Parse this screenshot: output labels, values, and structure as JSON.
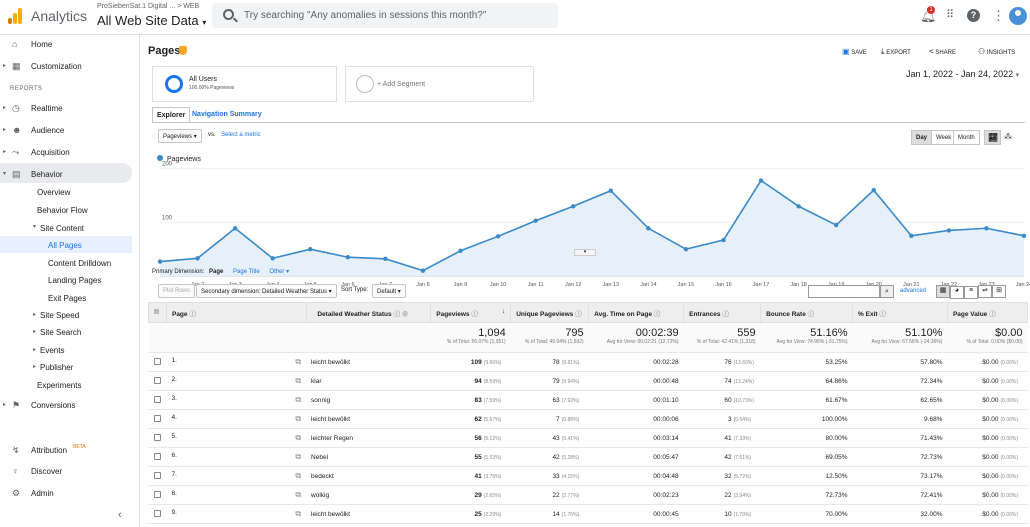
{
  "topbar": {
    "app_title": "Analytics",
    "account_path": "ProSiebenSat.1 Digital ... > WEB",
    "view_name": "All Web Site Data",
    "search_placeholder": "Try searching \"Any anomalies in sessions this month?\"",
    "notification_count": "1"
  },
  "sidebar": {
    "home": "Home",
    "customization": "Customization",
    "reports_label": "REPORTS",
    "realtime": "Realtime",
    "audience": "Audience",
    "acquisition": "Acquisition",
    "behavior": "Behavior",
    "overview": "Overview",
    "behavior_flow": "Behavior Flow",
    "site_content": "Site Content",
    "all_pages": "All Pages",
    "content_drilldown": "Content Drilldown",
    "landing_pages": "Landing Pages",
    "exit_pages": "Exit Pages",
    "site_speed": "Site Speed",
    "site_search": "Site Search",
    "events": "Events",
    "publisher": "Publisher",
    "experiments": "Experiments",
    "conversions": "Conversions",
    "attribution": "Attribution",
    "attribution_badge": "BETA",
    "discover": "Discover",
    "admin": "Admin"
  },
  "header": {
    "title": "Pages",
    "save": "SAVE",
    "export": "EXPORT",
    "share": "SHARE",
    "insights": "INSIGHTS",
    "date_range": "Jan 1, 2022 - Jan 24, 2022"
  },
  "segments": {
    "all_users": "All Users",
    "all_users_sub": "100.00% Pageviews",
    "add_segment": "+ Add Segment"
  },
  "tabs": {
    "explorer": "Explorer",
    "navigation_summary": "Navigation Summary"
  },
  "controls": {
    "metric": "Pageviews",
    "vs": "vs.",
    "select_metric": "Select a metric",
    "day": "Day",
    "week": "Week",
    "month": "Month"
  },
  "chart_data": {
    "type": "area",
    "legend": "Pageviews",
    "x": [
      "Jan 1",
      "Jan 2",
      "Jan 3",
      "Jan 4",
      "Jan 5",
      "Jan 6",
      "Jan 7",
      "Jan 8",
      "Jan 9",
      "Jan 10",
      "Jan 11",
      "Jan 12",
      "Jan 13",
      "Jan 14",
      "Jan 15",
      "Jan 16",
      "Jan 17",
      "Jan 18",
      "Jan 19",
      "Jan 20",
      "Jan 21",
      "Jan 22",
      "Jan 23",
      "Jan 24"
    ],
    "x_ticks": [
      "Jan 2",
      "Jan 3",
      "Jan 4",
      "Jan 5",
      "Jan 6",
      "Jan 7",
      "Jan 8",
      "Jan 9",
      "Jan 10",
      "Jan 11",
      "Jan 12",
      "Jan 13",
      "Jan 14",
      "Jan 15",
      "Jan 16",
      "Jan 17",
      "Jan 18",
      "Jan 19",
      "Jan 20",
      "Jan 21",
      "Jan 22",
      "Jan 23",
      "Jan 24"
    ],
    "values": [
      27,
      33,
      89,
      33,
      50,
      35,
      32,
      10,
      47,
      74,
      103,
      130,
      159,
      89,
      50,
      67,
      178,
      130,
      95,
      160,
      75,
      85,
      89,
      75
    ],
    "y_ticks": [
      100,
      200
    ],
    "ylim": [
      0,
      220
    ],
    "color": "#3a89c9"
  },
  "dimension_bar": {
    "primary_label": "Primary Dimension:",
    "page": "Page",
    "page_title": "Page Title",
    "other": "Other"
  },
  "table_controls": {
    "plot_rows": "Plot Rows",
    "secondary_dim": "Secondary dimension: Detailed Weather Status",
    "sort_type_label": "Sort Type:",
    "sort_type": "Default",
    "advanced": "advanced"
  },
  "table": {
    "headers": [
      "Page",
      "Detailed Weather Status",
      "Pageviews",
      "Unique Pageviews",
      "Avg. Time on Page",
      "Entrances",
      "Bounce Rate",
      "% Exit",
      "Page Value"
    ],
    "totals": [
      {
        "big": "1,094",
        "small": "% of Total: 56.07% (1,951)"
      },
      {
        "big": "795",
        "small": "% of Total: 49.94% (1,592)"
      },
      {
        "big": "00:02:39",
        "small": "Avg for View: 00:02:21 (12.72%)"
      },
      {
        "big": "559",
        "small": "% of Total: 42.41% (1,318)"
      },
      {
        "big": "51.16%",
        "small": "Avg for View: 74.96% (-31.75%)"
      },
      {
        "big": "51.10%",
        "small": "Avg for View: 67.56% (-24.36%)"
      },
      {
        "big": "$0.00",
        "small": "% of Total: 0.00% ($0.00)"
      }
    ],
    "rows": [
      {
        "n": "1.",
        "w": "leicht bewölkt",
        "pv": "109",
        "pvp": "(9.96%)",
        "upv": "78",
        "upvp": "(9.81%)",
        "t": "00:02:28",
        "e": "76",
        "ep": "(13.60%)",
        "b": "53.25%",
        "x": "57.80%",
        "v": "$0.00",
        "vp": "(0.00%)"
      },
      {
        "n": "2.",
        "w": "klar",
        "pv": "94",
        "pvp": "(8.59%)",
        "upv": "79",
        "upvp": "(9.94%)",
        "t": "00:00:48",
        "e": "74",
        "ep": "(13.24%)",
        "b": "64.86%",
        "x": "72.34%",
        "v": "$0.00",
        "vp": "(0.00%)"
      },
      {
        "n": "3.",
        "w": "sonnig",
        "pv": "83",
        "pvp": "(7.59%)",
        "upv": "63",
        "upvp": "(7.92%)",
        "t": "00:01:10",
        "e": "60",
        "ep": "(10.73%)",
        "b": "61.67%",
        "x": "62.65%",
        "v": "$0.00",
        "vp": "(0.00%)"
      },
      {
        "n": "4.",
        "w": "leicht bewölkt",
        "pv": "62",
        "pvp": "(5.67%)",
        "upv": "7",
        "upvp": "(0.88%)",
        "t": "00:00:06",
        "e": "3",
        "ep": "(0.54%)",
        "b": "100.00%",
        "x": "9.68%",
        "v": "$0.00",
        "vp": "(0.00%)"
      },
      {
        "n": "5.",
        "w": "leichter Regen",
        "pv": "56",
        "pvp": "(5.12%)",
        "upv": "43",
        "upvp": "(5.41%)",
        "t": "00:03:14",
        "e": "41",
        "ep": "(7.33%)",
        "b": "80.00%",
        "x": "71.43%",
        "v": "$0.00",
        "vp": "(0.00%)"
      },
      {
        "n": "6.",
        "w": "Nebel",
        "pv": "55",
        "pvp": "(5.03%)",
        "upv": "42",
        "upvp": "(5.28%)",
        "t": "00:05:47",
        "e": "42",
        "ep": "(7.51%)",
        "b": "69.05%",
        "x": "72.73%",
        "v": "$0.00",
        "vp": "(0.00%)"
      },
      {
        "n": "7.",
        "w": "bedeckt",
        "pv": "41",
        "pvp": "(3.75%)",
        "upv": "33",
        "upvp": "(4.15%)",
        "t": "00:04:48",
        "e": "32",
        "ep": "(5.72%)",
        "b": "12.50%",
        "x": "73.17%",
        "v": "$0.00",
        "vp": "(0.00%)"
      },
      {
        "n": "8.",
        "w": "wolkig",
        "pv": "29",
        "pvp": "(2.65%)",
        "upv": "22",
        "upvp": "(2.77%)",
        "t": "00:02:23",
        "e": "22",
        "ep": "(3.94%)",
        "b": "72.73%",
        "x": "72.41%",
        "v": "$0.00",
        "vp": "(0.00%)"
      },
      {
        "n": "9.",
        "w": "leicht bewölkt",
        "pv": "25",
        "pvp": "(2.29%)",
        "upv": "14",
        "upvp": "(1.76%)",
        "t": "00:00:45",
        "e": "10",
        "ep": "(1.79%)",
        "b": "70.00%",
        "x": "32.00%",
        "v": "$0.00",
        "vp": "(0.00%)"
      }
    ]
  }
}
